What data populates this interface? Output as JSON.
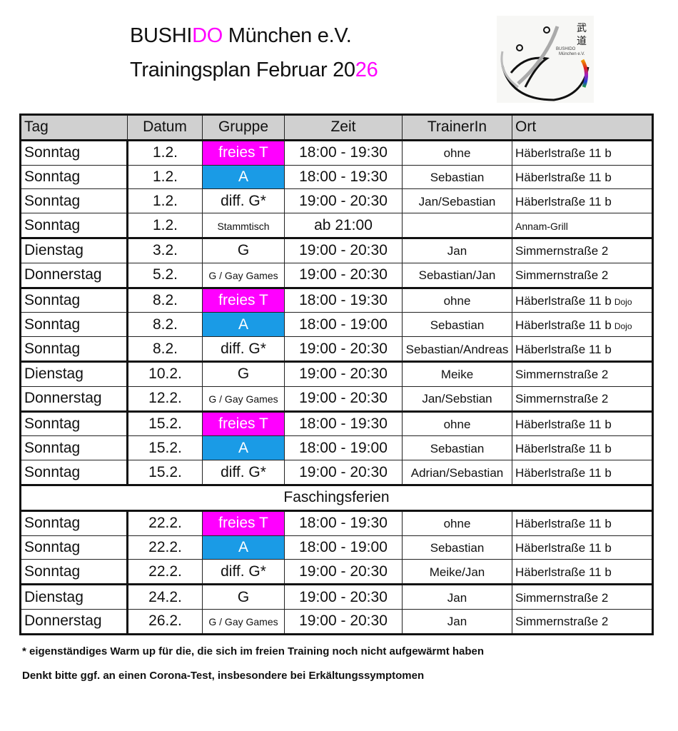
{
  "title": {
    "line1_a": "BUSHI",
    "line1_b": "DO",
    "line1_c": " München e.V.",
    "line2_a": "Trainingsplan Februar 20",
    "line2_b": "26"
  },
  "logo": {
    "text": "BUSHIDO München e.V.",
    "kanji": "武道"
  },
  "colors": {
    "freies_T": "#ff00ff",
    "A": "#1a9be6",
    "header": "#d0d0d0"
  },
  "table": {
    "headers": [
      "Tag",
      "Datum",
      "Gruppe",
      "Zeit",
      "TrainerIn",
      "Ort"
    ],
    "rows": [
      [
        "Sonntag",
        "1.2.",
        "freies T",
        "18:00 - 19:30",
        "ohne",
        "Häberlstraße 11 b",
        ""
      ],
      [
        "Sonntag",
        "1.2.",
        "A",
        "18:00 - 19:30",
        "Sebastian",
        "Häberlstraße 11 b",
        ""
      ],
      [
        "Sonntag",
        "1.2.",
        "diff. G*",
        "19:00 - 20:30",
        "Jan/Sebastian",
        "Häberlstraße 11 b",
        ""
      ],
      [
        "Sonntag",
        "1.2.",
        "Stammtisch",
        "ab 21:00",
        "",
        "Annam-Grill",
        ""
      ],
      [
        "Dienstag",
        "3.2.",
        "G",
        "19:00 - 20:30",
        "Jan",
        "Simmernstraße 2",
        ""
      ],
      [
        "Donnerstag",
        "5.2.",
        "G / Gay Games",
        "19:00 - 20:30",
        "Sebastian/Jan",
        "Simmernstraße 2",
        ""
      ],
      [
        "Sonntag",
        "8.2.",
        "freies T",
        "18:00 - 19:30",
        "ohne",
        "Häberlstraße 11 b",
        "Dojo"
      ],
      [
        "Sonntag",
        "8.2.",
        "A",
        "18:00 - 19:00",
        "Sebastian",
        "Häberlstraße 11 b",
        "Dojo"
      ],
      [
        "Sonntag",
        "8.2.",
        "diff. G*",
        "19:00 - 20:30",
        "Sebastian/Andreas",
        "Häberlstraße 11 b",
        ""
      ],
      [
        "Dienstag",
        "10.2.",
        "G",
        "19:00 - 20:30",
        "Meike",
        "Simmernstraße 2",
        ""
      ],
      [
        "Donnerstag",
        "12.2.",
        "G / Gay Games",
        "19:00 - 20:30",
        "Jan/Sebstian",
        "Simmernstraße 2",
        ""
      ],
      [
        "Sonntag",
        "15.2.",
        "freies T",
        "18:00 - 19:30",
        "ohne",
        "Häberlstraße 11 b",
        ""
      ],
      [
        "Sonntag",
        "15.2.",
        "A",
        "18:00 - 19:00",
        "Sebastian",
        "Häberlstraße 11 b",
        ""
      ],
      [
        "Sonntag",
        "15.2.",
        "diff. G*",
        "19:00 - 20:30",
        "Adrian/Sebastian",
        "Häberlstraße 11 b",
        ""
      ],
      [
        "Sonntag",
        "22.2.",
        "freies T",
        "18:00 - 19:30",
        "ohne",
        "Häberlstraße 11 b",
        ""
      ],
      [
        "Sonntag",
        "22.2.",
        "A",
        "18:00 - 19:00",
        "Sebastian",
        "Häberlstraße 11 b",
        ""
      ],
      [
        "Sonntag",
        "22.2.",
        "diff. G*",
        "19:00 - 20:30",
        "Meike/Jan",
        "Häberlstraße 11 b",
        ""
      ],
      [
        "Dienstag",
        "24.2.",
        "G",
        "19:00 - 20:30",
        "Jan",
        "Simmernstraße 2",
        ""
      ],
      [
        "Donnerstag",
        "26.2.",
        "G / Gay Games",
        "19:00 - 20:30",
        "Jan",
        "Simmernstraße 2",
        ""
      ]
    ],
    "break_label": "Faschingsferien"
  },
  "notes": [
    "* eigenständiges Warm up für die, die sich im freien Training noch nicht aufgewärmt haben",
    "Denkt bitte ggf. an einen Corona-Test, insbesondere bei Erkältungssymptomen"
  ]
}
